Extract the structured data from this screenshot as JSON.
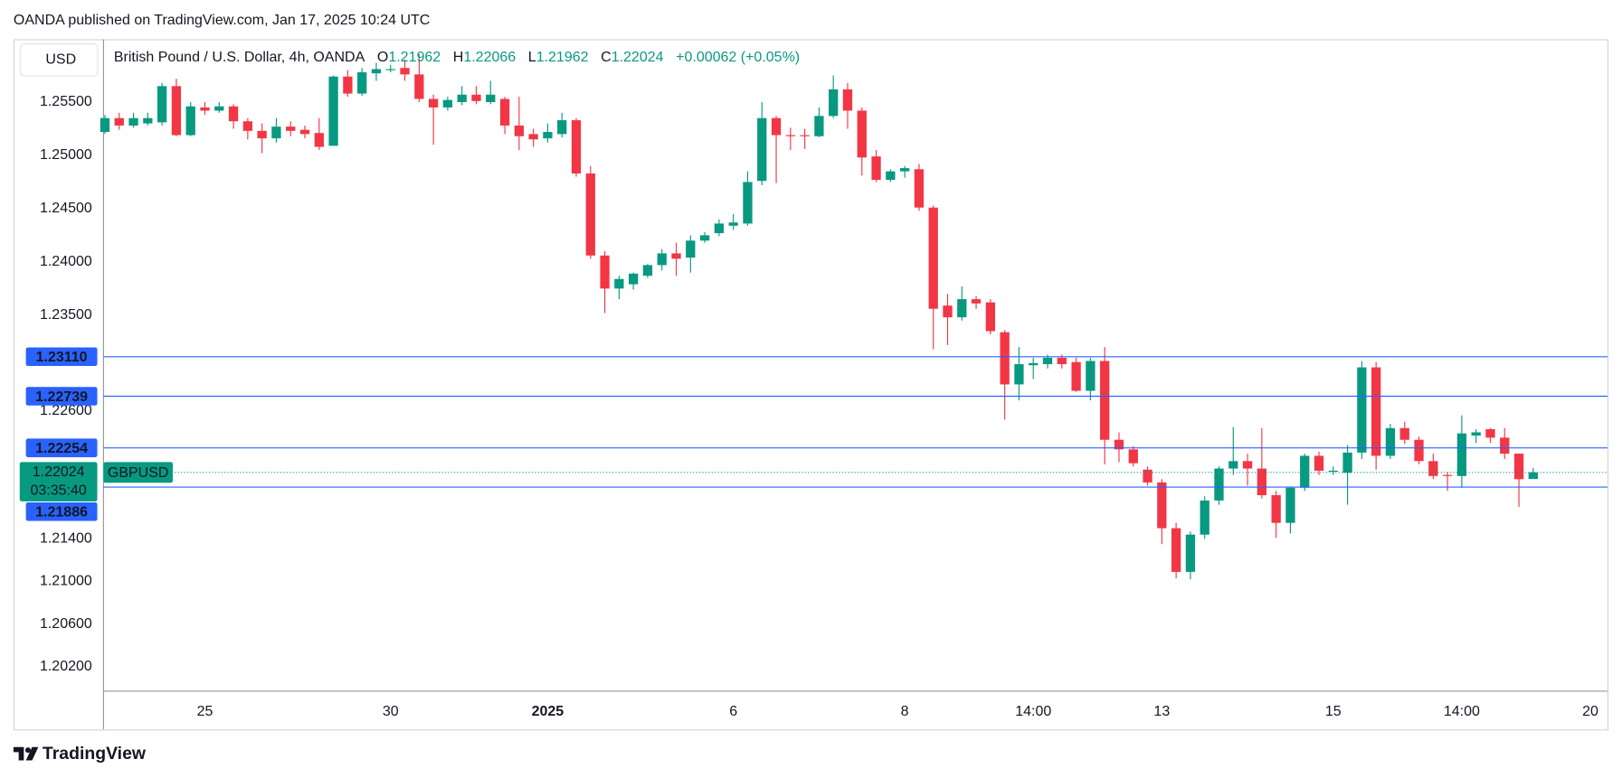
{
  "header": {
    "text": "OANDA published on TradingView.com, Jan 17, 2025 10:24 UTC"
  },
  "branding": "TradingView",
  "chart_data": {
    "type": "candlestick",
    "currency": "USD",
    "legend": {
      "title": "British Pound / U.S. Dollar, 4h, OANDA",
      "ohlc": [
        {
          "key": "O",
          "value": "1.21962"
        },
        {
          "key": "H",
          "value": "1.22066"
        },
        {
          "key": "L",
          "value": "1.21962"
        },
        {
          "key": "C",
          "value": "1.22024"
        }
      ],
      "change": "+0.00062 (+0.05%)"
    },
    "up_color": "#089981",
    "down_color": "#f23645",
    "line_color": "#2962ff",
    "grid": false,
    "xlim": [
      -0.1,
      105.2
    ],
    "xticks": [
      {
        "value": 7,
        "label": "25"
      },
      {
        "value": 20,
        "label": "30"
      },
      {
        "value": 31,
        "label": "2025",
        "bold": true
      },
      {
        "value": 44,
        "label": "6"
      },
      {
        "value": 56,
        "label": "8"
      },
      {
        "value": 65,
        "label": "14:00"
      },
      {
        "value": 74,
        "label": "13"
      },
      {
        "value": 86,
        "label": "15"
      },
      {
        "value": 95,
        "label": "14:00"
      },
      {
        "value": 104,
        "label": "20"
      }
    ],
    "ylim": [
      1.1997,
      1.2609
    ],
    "yticks": [
      {
        "value": 1.255,
        "label": "1.25500"
      },
      {
        "value": 1.25,
        "label": "1.25000"
      },
      {
        "value": 1.245,
        "label": "1.24500"
      },
      {
        "value": 1.24,
        "label": "1.24000"
      },
      {
        "value": 1.235,
        "label": "1.23500"
      },
      {
        "value": 1.226,
        "label": "1.22600"
      },
      {
        "value": 1.214,
        "label": "1.21400"
      },
      {
        "value": 1.21,
        "label": "1.21000"
      },
      {
        "value": 1.206,
        "label": "1.20600"
      },
      {
        "value": 1.202,
        "label": "1.20200"
      }
    ],
    "price_lines": [
      {
        "value": 1.2311,
        "label": "1.23110"
      },
      {
        "value": 1.22739,
        "label": "1.22739"
      },
      {
        "value": 1.22254,
        "label": "1.22254"
      },
      {
        "value": 1.21886,
        "label": "1.21886"
      }
    ],
    "last_price": {
      "value": 1.22024,
      "label": "1.22024",
      "countdown": "03:35:40"
    },
    "series": [
      {
        "name": "GBPUSD",
        "open": [
          1.2522,
          1.2535,
          1.2528,
          1.253,
          1.2531,
          1.2565,
          1.2519,
          1.2545,
          1.2542,
          1.2546,
          1.2532,
          1.2523,
          1.2516,
          1.2527,
          1.2524,
          1.2521,
          1.2509,
          1.2574,
          1.2558,
          1.2577,
          1.258,
          1.2582,
          1.2576,
          1.2553,
          1.2545,
          1.255,
          1.2557,
          1.255,
          1.2553,
          1.2528,
          1.252,
          1.2516,
          1.252,
          1.2533,
          1.2483,
          1.2406,
          1.2375,
          1.2379,
          1.2387,
          1.2397,
          1.2408,
          1.2404,
          1.242,
          1.2427,
          1.2434,
          1.2436,
          1.2476,
          1.2535,
          1.2519,
          1.2519,
          1.2518,
          1.2537,
          1.2562,
          1.2542,
          1.2499,
          1.2477,
          1.2485,
          1.2487,
          1.2451,
          1.2359,
          1.2348,
          1.2365,
          1.2362,
          1.2334,
          1.2285,
          1.2303,
          1.2304,
          1.231,
          1.2306,
          1.2279,
          1.2307,
          1.2233,
          1.2224,
          1.2205,
          1.2193,
          1.215,
          1.2109,
          1.2144,
          1.2176,
          1.2206,
          1.2213,
          1.2206,
          1.2181,
          1.2155,
          1.2188,
          1.2218,
          1.2203,
          1.2202,
          1.2221,
          1.2301,
          1.2218,
          1.2244,
          1.2233,
          1.2213,
          1.22,
          1.2199,
          1.2237,
          1.2243,
          1.2235,
          1.222,
          1.21962
        ],
        "high": [
          1.2538,
          1.254,
          1.254,
          1.254,
          1.2568,
          1.2572,
          1.255,
          1.255,
          1.255,
          1.2548,
          1.2535,
          1.253,
          1.2535,
          1.2532,
          1.2528,
          1.2535,
          1.2575,
          1.258,
          1.2582,
          1.2587,
          1.2585,
          1.259,
          1.2595,
          1.2557,
          1.2555,
          1.2565,
          1.2565,
          1.257,
          1.2555,
          1.2555,
          1.2525,
          1.253,
          1.254,
          1.2535,
          1.249,
          1.241,
          1.2387,
          1.239,
          1.2398,
          1.2412,
          1.2418,
          1.2425,
          1.2428,
          1.244,
          1.2445,
          1.2485,
          1.255,
          1.2537,
          1.2526,
          1.2525,
          1.2545,
          1.2575,
          1.2568,
          1.2545,
          1.2505,
          1.2487,
          1.249,
          1.2492,
          1.2453,
          1.237,
          1.2377,
          1.2368,
          1.2365,
          1.2336,
          1.232,
          1.231,
          1.2313,
          1.2313,
          1.231,
          1.231,
          1.232,
          1.224,
          1.2227,
          1.2208,
          1.2196,
          1.2155,
          1.2147,
          1.218,
          1.2208,
          1.2245,
          1.222,
          1.2244,
          1.2185,
          1.2189,
          1.222,
          1.2222,
          1.2208,
          1.2228,
          1.2307,
          1.2306,
          1.2248,
          1.225,
          1.2236,
          1.222,
          1.2203,
          1.2256,
          1.2243,
          1.2244,
          1.2244,
          1.222,
          1.22066
        ],
        "low": [
          1.252,
          1.2524,
          1.2526,
          1.2528,
          1.2528,
          1.2518,
          1.2518,
          1.2538,
          1.254,
          1.2525,
          1.2515,
          1.2502,
          1.2512,
          1.2518,
          1.2516,
          1.2505,
          1.2509,
          1.2555,
          1.2556,
          1.257,
          1.2578,
          1.257,
          1.255,
          1.251,
          1.2542,
          1.2547,
          1.2548,
          1.2548,
          1.252,
          1.2505,
          1.2508,
          1.2512,
          1.2517,
          1.248,
          1.2403,
          1.2352,
          1.2365,
          1.2374,
          1.2385,
          1.2392,
          1.2387,
          1.239,
          1.2418,
          1.2424,
          1.243,
          1.2434,
          1.2472,
          1.2474,
          1.2505,
          1.2506,
          1.2517,
          1.2535,
          1.2525,
          1.2481,
          1.2475,
          1.2475,
          1.2479,
          1.2448,
          1.2318,
          1.2322,
          1.2345,
          1.2356,
          1.2332,
          1.2252,
          1.227,
          1.229,
          1.23,
          1.23,
          1.2278,
          1.227,
          1.221,
          1.2212,
          1.2208,
          1.219,
          1.2135,
          1.2103,
          1.2102,
          1.214,
          1.2172,
          1.22,
          1.219,
          1.2178,
          1.2141,
          1.2145,
          1.2185,
          1.22,
          1.22,
          1.2172,
          1.2215,
          1.2205,
          1.2215,
          1.2229,
          1.221,
          1.2196,
          1.2185,
          1.2188,
          1.223,
          1.223,
          1.2215,
          1.217,
          1.21962
        ],
        "close": [
          1.2535,
          1.2528,
          1.2535,
          1.2535,
          1.2565,
          1.2519,
          1.2546,
          1.2542,
          1.2546,
          1.2532,
          1.2523,
          1.2516,
          1.2527,
          1.2523,
          1.252,
          1.2508,
          1.2574,
          1.2558,
          1.2578,
          1.2581,
          1.2581,
          1.2576,
          1.2553,
          1.2545,
          1.2552,
          1.2557,
          1.2551,
          1.2557,
          1.2528,
          1.2518,
          1.2515,
          1.2522,
          1.2533,
          1.2483,
          1.2406,
          1.2375,
          1.2384,
          1.2389,
          1.2397,
          1.2408,
          1.2403,
          1.242,
          1.2425,
          1.2436,
          1.2437,
          1.2475,
          1.2535,
          1.2519,
          1.2518,
          1.2518,
          1.2537,
          1.2562,
          1.2542,
          1.2498,
          1.2477,
          1.2485,
          1.2488,
          1.2451,
          1.2356,
          1.2348,
          1.2365,
          1.2361,
          1.2335,
          1.2285,
          1.2304,
          1.2305,
          1.231,
          1.2304,
          1.2279,
          1.2307,
          1.2233,
          1.2224,
          1.2211,
          1.2193,
          1.215,
          1.2109,
          1.2144,
          1.2176,
          1.2206,
          1.2213,
          1.2206,
          1.2181,
          1.2155,
          1.2188,
          1.2218,
          1.2204,
          1.2204,
          1.2221,
          1.2301,
          1.2218,
          1.2244,
          1.2233,
          1.2213,
          1.2199,
          1.2199,
          1.2239,
          1.224,
          1.2235,
          1.222,
          1.2196,
          1.22024
        ]
      }
    ]
  }
}
